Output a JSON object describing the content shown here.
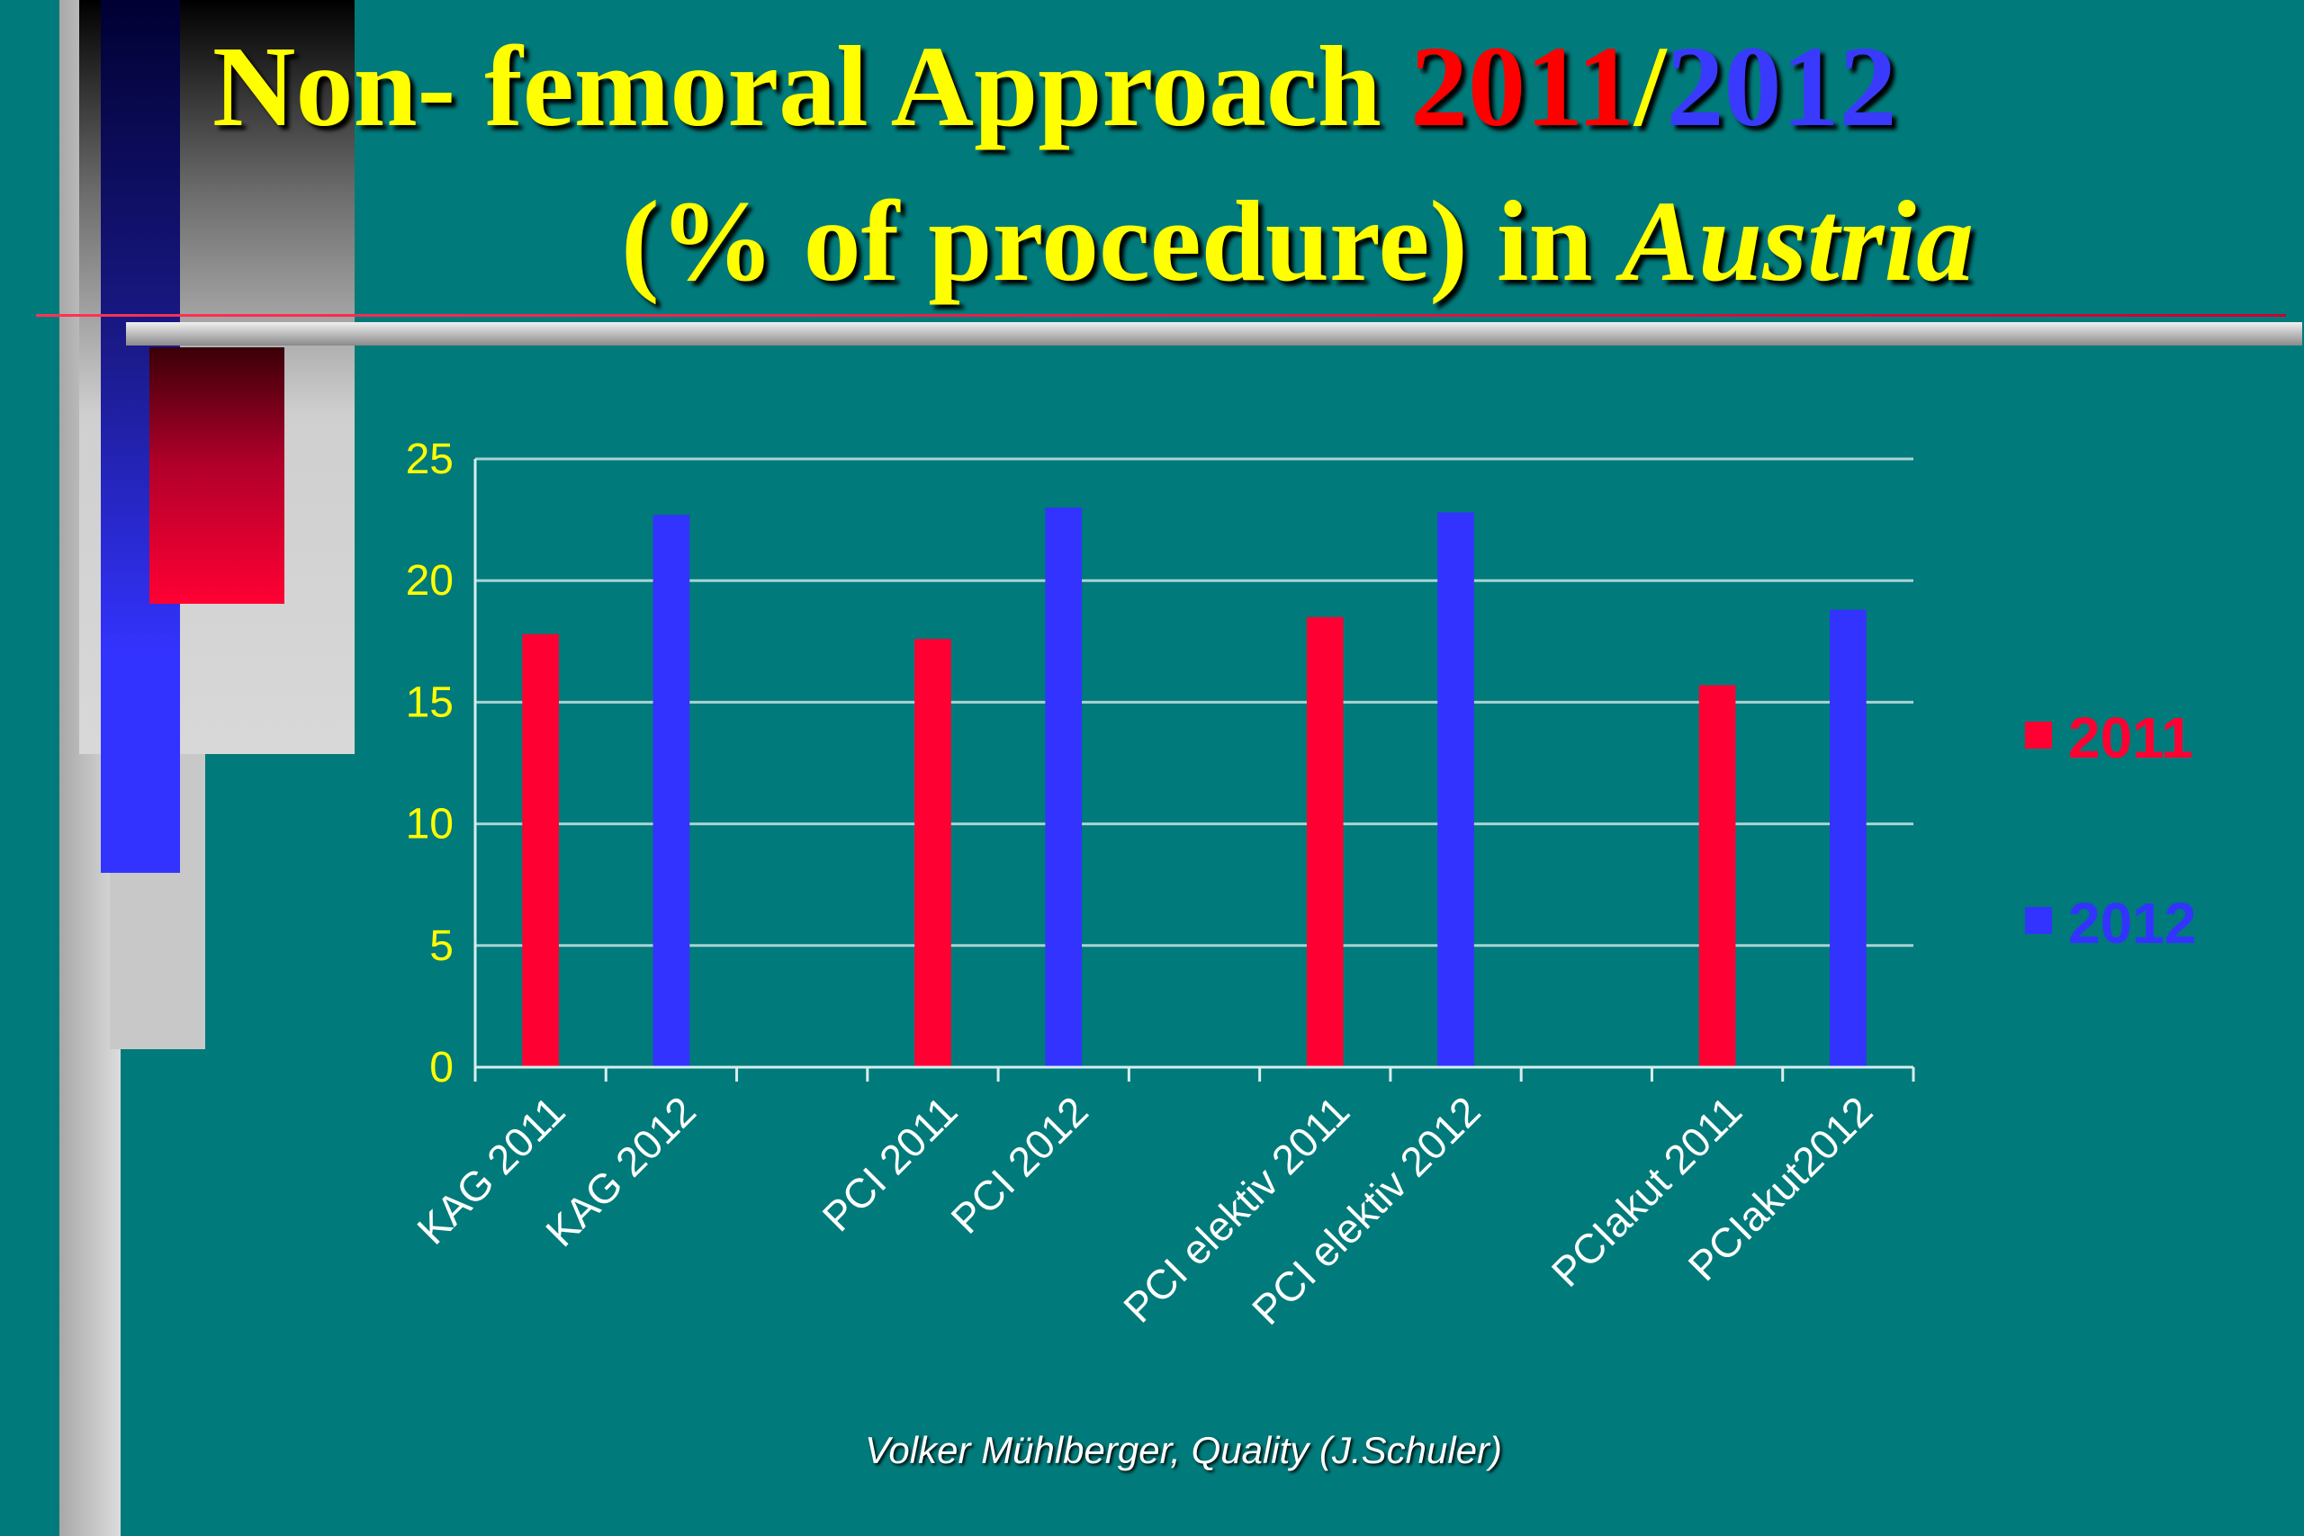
{
  "title": {
    "line1_text": "Non- femoral Approach ",
    "line1_year1": "2011",
    "line1_sep": "/",
    "line1_year2": "2012",
    "line2_text": "(% of procedure) in ",
    "line2_place": "Austria"
  },
  "credit": "Volker Mühlberger, Quality  (J.Schuler)",
  "colors": {
    "background": "#007a7a",
    "series_2011": "#ff0033",
    "series_2012": "#3333ff",
    "axis_text": "#ffff00",
    "title": "#ffff00"
  },
  "chart_data": {
    "type": "bar",
    "title": "",
    "xlabel": "",
    "ylabel": "",
    "ylim": [
      0,
      25
    ],
    "yticks": [
      "0",
      "5",
      "10",
      "15",
      "20",
      "25"
    ],
    "grid": true,
    "legend_position": "right",
    "categories": [
      "KAG 2011",
      "KAG 2012",
      "",
      "PCI 2011",
      "PCI 2012",
      "",
      "PCI elektiv 2011",
      "PCI elektiv 2012",
      "",
      "PCIakut 2011",
      "PCIakut2012"
    ],
    "series": [
      {
        "name": "2011",
        "values": [
          17.8,
          null,
          null,
          17.6,
          null,
          null,
          18.5,
          null,
          null,
          15.7,
          null
        ]
      },
      {
        "name": "2012",
        "values": [
          null,
          22.7,
          null,
          null,
          23.0,
          null,
          null,
          22.8,
          null,
          null,
          18.8
        ]
      }
    ]
  }
}
